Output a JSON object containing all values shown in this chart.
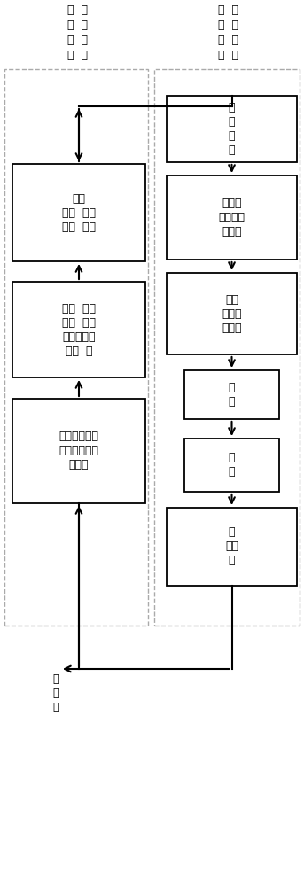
{
  "left_header_col1": [
    "社",
    "址",
    "提",
    "减"
  ],
  "left_header_col2": [
    "米",
    "极",
    "蒸",
    "水"
  ],
  "right_header_col1": [
    "匹",
    "牛",
    "激",
    "极"
  ],
  "right_header_col2": [
    "米",
    "极",
    "如",
    "来"
  ],
  "box_L1_lines": [
    "整技",
    "极技  技极",
    "极澡  极澡"
  ],
  "box_L2_lines": [
    "监监  技技",
    "旅监  技土",
    "额监  及技  土",
    "搂只  土"
  ],
  "box_L3_lines": [
    "当阴极极  极极",
    "怠位制极  极极",
    "杰极液"
  ],
  "box_R1_lines": [
    "极",
    "融",
    "合",
    "图"
  ],
  "box_R2_lines": [
    "监极极",
    "极板及极",
    "只别及"
  ],
  "box_R3_lines": [
    "校极",
    "极及分",
    "极别及"
  ],
  "box_R4_lines": [
    "冲",
    "裁"
  ],
  "box_R5_lines": [
    "光",
    "整"
  ],
  "box_R6_lines": [
    "裁",
    "入出",
    "薄"
  ],
  "bottom_label_lines": [
    "裁",
    "面",
    "图"
  ],
  "bg_color": "#ffffff",
  "box_color": "#000000",
  "dash_color": "#aaaaaa",
  "arrow_color": "#000000",
  "font_size": 9
}
